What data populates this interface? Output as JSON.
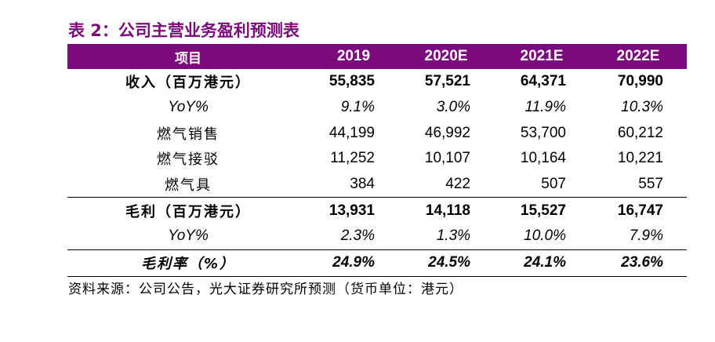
{
  "title": "表 2：公司主营业务盈利预测表",
  "table": {
    "header": [
      "项目",
      "2019",
      "2020E",
      "2021E",
      "2022E"
    ],
    "rows": [
      {
        "label": "收入（百万港元）",
        "values": [
          "55,835",
          "57,521",
          "64,371",
          "70,990"
        ]
      },
      {
        "label": "YoY%",
        "values": [
          "9.1%",
          "3.0%",
          "11.9%",
          "10.3%"
        ]
      },
      {
        "label": "燃气销售",
        "values": [
          "44,199",
          "46,992",
          "53,700",
          "60,212"
        ]
      },
      {
        "label": "燃气接驳",
        "values": [
          "11,252",
          "10,107",
          "10,164",
          "10,221"
        ]
      },
      {
        "label": "燃气具",
        "values": [
          "384",
          "422",
          "507",
          "557"
        ]
      },
      {
        "label": "毛利（百万港元）",
        "values": [
          "13,931",
          "14,118",
          "15,527",
          "16,747"
        ]
      },
      {
        "label": "YoY%",
        "values": [
          "2.3%",
          "1.3%",
          "10.0%",
          "7.9%"
        ]
      },
      {
        "label": "毛利率（%）",
        "values": [
          "24.9%",
          "24.5%",
          "24.1%",
          "23.6%"
        ]
      }
    ]
  },
  "source": "资料来源：公司公告，光大证券研究所预测（货币单位：港元）",
  "colors": {
    "header_bg": "#7b0a7d",
    "title": "#7a0a7a"
  }
}
